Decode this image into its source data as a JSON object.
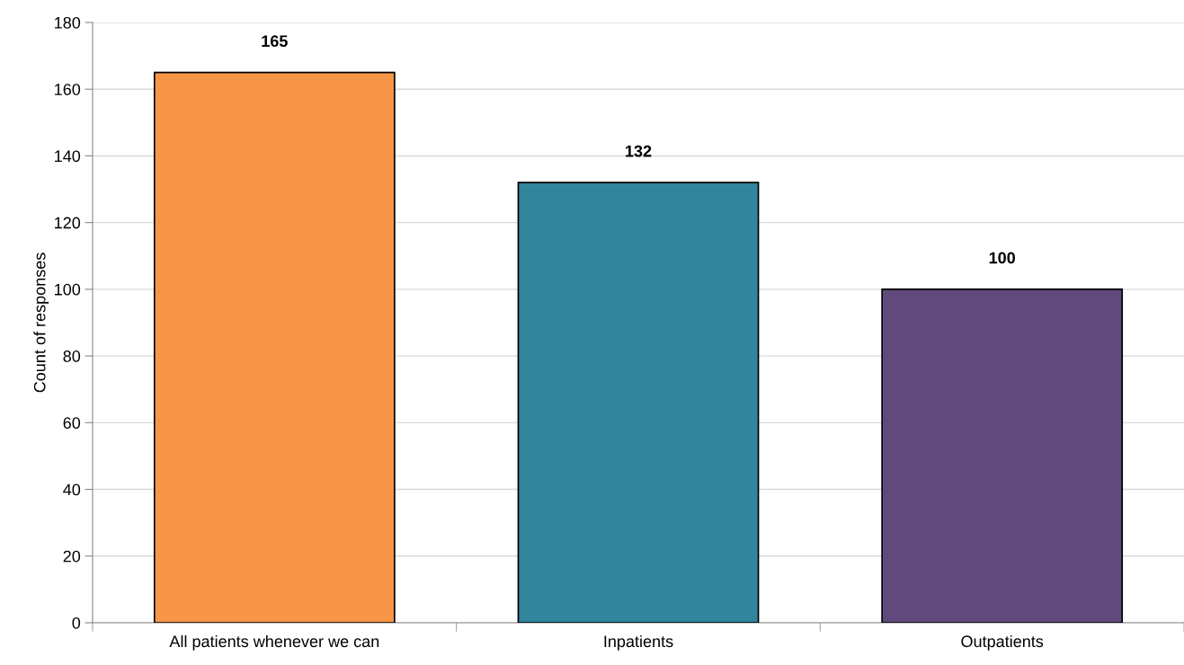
{
  "chart_data": {
    "type": "bar",
    "ylabel": "Count of responses",
    "categories": [
      "All patients whenever we can",
      "Inpatients",
      "Outpatients"
    ],
    "values": [
      165,
      132,
      100
    ],
    "colors": [
      "#f79646",
      "#31859c",
      "#604a7b"
    ],
    "ylim": [
      0,
      180
    ],
    "yticks": [
      0,
      20,
      40,
      60,
      80,
      100,
      120,
      140,
      160,
      180
    ],
    "grid": "y",
    "data_labels": true,
    "legend": false
  }
}
